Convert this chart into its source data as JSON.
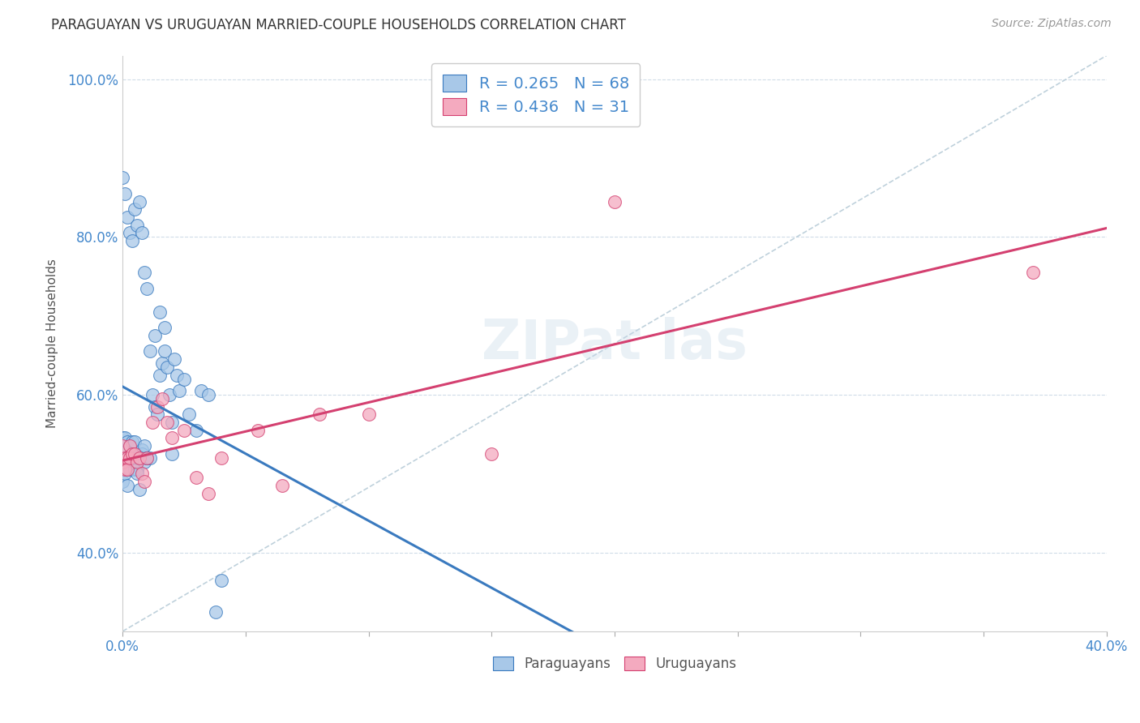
{
  "title": "PARAGUAYAN VS URUGUAYAN MARRIED-COUPLE HOUSEHOLDS CORRELATION CHART",
  "source_text": "Source: ZipAtlas.com",
  "ylabel": "Married-couple Households",
  "xlim": [
    0.0,
    0.4
  ],
  "ylim": [
    0.3,
    1.03
  ],
  "xticks": [
    0.0,
    0.05,
    0.1,
    0.15,
    0.2,
    0.25,
    0.3,
    0.35,
    0.4
  ],
  "xticklabels": [
    "0.0%",
    "",
    "",
    "",
    "",
    "",
    "",
    "",
    "40.0%"
  ],
  "yticks": [
    0.4,
    0.6,
    0.8,
    1.0
  ],
  "yticklabels": [
    "40.0%",
    "60.0%",
    "80.0%",
    "100.0%"
  ],
  "R_paraguayan": 0.265,
  "N_paraguayan": 68,
  "R_uruguayan": 0.436,
  "N_uruguayan": 31,
  "color_paraguayan": "#a8c8e8",
  "color_uruguayan": "#f4aabf",
  "trendline_color_paraguayan": "#3a7abf",
  "trendline_color_uruguayan": "#d44070",
  "dashed_line_color": "#b8ccd8",
  "paraguayan_x": [
    0.0,
    0.0,
    0.0,
    0.0,
    0.001,
    0.001,
    0.001,
    0.001,
    0.002,
    0.002,
    0.002,
    0.002,
    0.003,
    0.003,
    0.003,
    0.004,
    0.004,
    0.004,
    0.005,
    0.005,
    0.005,
    0.006,
    0.006,
    0.006,
    0.007,
    0.007,
    0.008,
    0.008,
    0.009,
    0.009,
    0.01,
    0.01,
    0.011,
    0.012,
    0.013,
    0.014,
    0.015,
    0.016,
    0.017,
    0.018,
    0.019,
    0.02,
    0.021,
    0.022,
    0.023,
    0.025,
    0.027,
    0.03,
    0.032,
    0.035,
    0.038,
    0.04,
    0.0,
    0.001,
    0.002,
    0.003,
    0.004,
    0.005,
    0.006,
    0.007,
    0.008,
    0.009,
    0.01,
    0.011,
    0.013,
    0.015,
    0.017,
    0.02
  ],
  "paraguayan_y": [
    0.545,
    0.52,
    0.505,
    0.49,
    0.515,
    0.53,
    0.5,
    0.545,
    0.52,
    0.485,
    0.54,
    0.52,
    0.535,
    0.505,
    0.52,
    0.52,
    0.515,
    0.54,
    0.515,
    0.54,
    0.505,
    0.505,
    0.52,
    0.5,
    0.52,
    0.48,
    0.53,
    0.525,
    0.515,
    0.535,
    0.52,
    0.52,
    0.52,
    0.6,
    0.585,
    0.575,
    0.625,
    0.64,
    0.655,
    0.635,
    0.6,
    0.565,
    0.645,
    0.625,
    0.605,
    0.62,
    0.575,
    0.555,
    0.605,
    0.6,
    0.325,
    0.365,
    0.875,
    0.855,
    0.825,
    0.805,
    0.795,
    0.835,
    0.815,
    0.845,
    0.805,
    0.755,
    0.735,
    0.655,
    0.675,
    0.705,
    0.685,
    0.525
  ],
  "uruguayan_x": [
    0.0,
    0.0,
    0.001,
    0.001,
    0.002,
    0.002,
    0.003,
    0.003,
    0.004,
    0.005,
    0.006,
    0.007,
    0.008,
    0.009,
    0.01,
    0.012,
    0.014,
    0.016,
    0.018,
    0.02,
    0.025,
    0.03,
    0.035,
    0.04,
    0.055,
    0.065,
    0.08,
    0.1,
    0.15,
    0.2,
    0.37
  ],
  "uruguayan_y": [
    0.535,
    0.515,
    0.505,
    0.52,
    0.52,
    0.505,
    0.535,
    0.52,
    0.525,
    0.525,
    0.515,
    0.52,
    0.5,
    0.49,
    0.52,
    0.565,
    0.585,
    0.595,
    0.565,
    0.545,
    0.555,
    0.495,
    0.475,
    0.52,
    0.555,
    0.485,
    0.575,
    0.575,
    0.525,
    0.845,
    0.755
  ]
}
